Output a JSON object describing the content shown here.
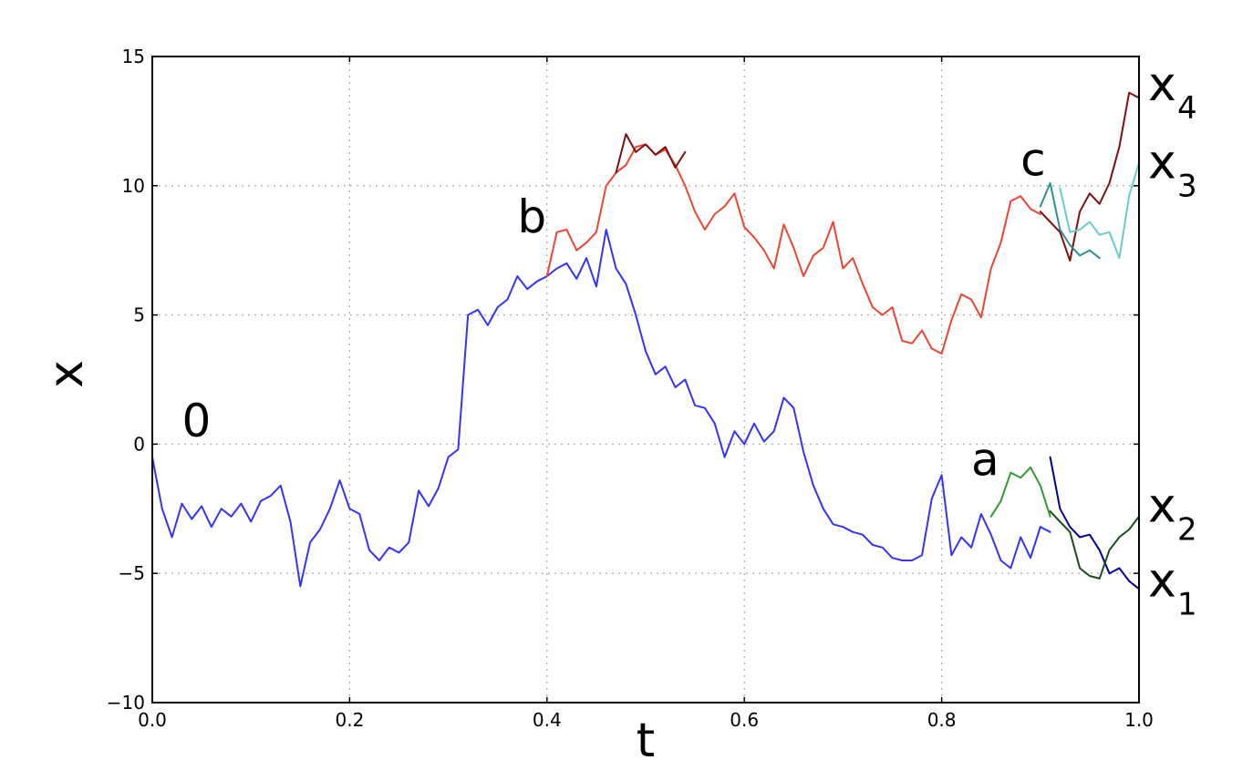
{
  "chart_data": {
    "type": "line",
    "xlabel": "t",
    "ylabel": "x",
    "xlim": [
      0.0,
      1.0
    ],
    "ylim": [
      -10,
      15
    ],
    "xticks": [
      0.0,
      0.2,
      0.4,
      0.6,
      0.8,
      1.0
    ],
    "xtick_labels": [
      "0.0",
      "0.2",
      "0.4",
      "0.6",
      "0.8",
      "1.0"
    ],
    "yticks": [
      -10,
      -5,
      0,
      5,
      10,
      15
    ],
    "ytick_labels": [
      "−10",
      "−5",
      "0",
      "5",
      "10",
      "15"
    ],
    "grid": true,
    "series": [
      {
        "name": "",
        "color": "#3333ff",
        "x": [
          0.0,
          0.01,
          0.02,
          0.03,
          0.04,
          0.05,
          0.06,
          0.07,
          0.08,
          0.09,
          0.1,
          0.11,
          0.12,
          0.13,
          0.14,
          0.15,
          0.16,
          0.17,
          0.18,
          0.19,
          0.2,
          0.21,
          0.22,
          0.23,
          0.24,
          0.25,
          0.26,
          0.27,
          0.28,
          0.29,
          0.3,
          0.31,
          0.32,
          0.33,
          0.34,
          0.35,
          0.36,
          0.37,
          0.38,
          0.39,
          0.4,
          0.41,
          0.42,
          0.43,
          0.44,
          0.45,
          0.46,
          0.47,
          0.48,
          0.49,
          0.5,
          0.51,
          0.52,
          0.53,
          0.54,
          0.55,
          0.56,
          0.57,
          0.58,
          0.59,
          0.6,
          0.61,
          0.62,
          0.63,
          0.64,
          0.65,
          0.66,
          0.67,
          0.68,
          0.69,
          0.7,
          0.71,
          0.72,
          0.73,
          0.74,
          0.75,
          0.76,
          0.77,
          0.78,
          0.79,
          0.8
        ],
        "y": [
          -0.5,
          -2.5,
          -3.6,
          -2.3,
          -2.9,
          -2.4,
          -3.2,
          -2.5,
          -2.8,
          -2.3,
          -3.0,
          -2.2,
          -2.0,
          -1.6,
          -3.0,
          -5.5,
          -3.8,
          -3.3,
          -2.5,
          -1.4,
          -2.5,
          -2.7,
          -4.1,
          -4.5,
          -4.0,
          -4.2,
          -3.8,
          -1.8,
          -2.4,
          -1.7,
          -0.5,
          -0.2,
          5.0,
          5.2,
          4.6,
          5.3,
          5.6,
          6.5,
          6.0,
          6.3,
          6.5,
          6.8,
          7.0,
          6.4,
          7.2,
          6.1,
          8.3,
          6.8,
          6.2,
          5.0,
          3.6,
          2.7,
          3.0,
          2.2,
          2.5,
          1.5,
          1.4,
          0.8,
          -0.5,
          0.5,
          0.0,
          0.8,
          0.1,
          0.5,
          1.8,
          1.4,
          -0.3,
          -1.6,
          -2.5,
          -3.1,
          -3.2,
          -3.4,
          -3.5,
          -3.9,
          -4.0,
          -4.4,
          -4.5,
          -4.5,
          -4.3,
          -2.1,
          -1.2
        ]
      },
      {
        "name": "",
        "color": "#3333ff",
        "x": [
          0.8,
          0.81,
          0.82,
          0.83,
          0.84,
          0.85,
          0.86,
          0.87,
          0.88,
          0.89,
          0.9,
          0.91
        ],
        "y": [
          -1.2,
          -4.3,
          -3.6,
          -4.0,
          -2.7,
          -3.5,
          -4.5,
          -4.8,
          -3.6,
          -4.4,
          -3.2,
          -3.4
        ]
      },
      {
        "name": "",
        "color": "#339933",
        "x": [
          0.85,
          0.86,
          0.87,
          0.88,
          0.89,
          0.9,
          0.91
        ],
        "y": [
          -2.8,
          -2.2,
          -1.1,
          -1.3,
          -0.9,
          -1.6,
          -2.8
        ]
      },
      {
        "name": "",
        "color": "#000099",
        "x": [
          0.91,
          0.92,
          0.93,
          0.94,
          0.95,
          0.96,
          0.97,
          0.98,
          0.99,
          1.0
        ],
        "y": [
          -0.5,
          -2.5,
          -3.2,
          -3.6,
          -3.5,
          -4.1,
          -5.0,
          -4.8,
          -5.3,
          -5.6
        ]
      },
      {
        "name": "",
        "color": "#1a4d1a",
        "x": [
          0.91,
          0.92,
          0.93,
          0.94,
          0.95,
          0.96,
          0.97,
          0.98,
          0.99,
          1.0
        ],
        "y": [
          -2.6,
          -3.0,
          -3.4,
          -4.8,
          -5.1,
          -5.2,
          -4.1,
          -3.6,
          -3.3,
          -2.8
        ]
      },
      {
        "name": "",
        "color": "#ee4433",
        "x": [
          0.4,
          0.41,
          0.42,
          0.43,
          0.44,
          0.45,
          0.46,
          0.47,
          0.48,
          0.49,
          0.5,
          0.51,
          0.52,
          0.53,
          0.54,
          0.55,
          0.56,
          0.57,
          0.58,
          0.59,
          0.6,
          0.61,
          0.62,
          0.63,
          0.64,
          0.65,
          0.66,
          0.67,
          0.68,
          0.69,
          0.7,
          0.71,
          0.72,
          0.73,
          0.74,
          0.75,
          0.76,
          0.77,
          0.78,
          0.79,
          0.8,
          0.81,
          0.82,
          0.83,
          0.84,
          0.85,
          0.86,
          0.87,
          0.88,
          0.89,
          0.9
        ],
        "y": [
          6.5,
          8.2,
          8.3,
          7.5,
          7.8,
          8.2,
          10.0,
          10.5,
          10.8,
          11.5,
          11.6,
          11.2,
          11.4,
          10.8,
          10.0,
          9.0,
          8.3,
          8.9,
          9.2,
          9.7,
          8.4,
          8.0,
          7.5,
          6.8,
          8.5,
          7.6,
          6.5,
          7.3,
          7.6,
          8.6,
          6.8,
          7.2,
          6.2,
          5.3,
          5.0,
          5.3,
          4.0,
          3.9,
          4.4,
          3.7,
          3.5,
          4.8,
          5.8,
          5.6,
          4.9,
          6.8,
          7.8,
          9.4,
          9.6,
          9.1,
          8.9
        ]
      },
      {
        "name": "",
        "color": "#7f0f0f",
        "x": [
          0.47,
          0.48,
          0.49,
          0.5,
          0.51,
          0.52,
          0.53,
          0.54
        ],
        "y": [
          10.5,
          12.0,
          11.3,
          11.6,
          11.2,
          11.5,
          10.7,
          11.3
        ]
      },
      {
        "name": "",
        "color": "#7f0f0f",
        "x": [
          0.9,
          0.91,
          0.92,
          0.93,
          0.94,
          0.95,
          0.96,
          0.97,
          0.98,
          0.99,
          1.0
        ],
        "y": [
          9.0,
          8.6,
          8.2,
          7.1,
          9.0,
          9.7,
          9.3,
          10.1,
          11.5,
          13.6,
          13.4
        ]
      },
      {
        "name": "",
        "color": "#2f8f8f",
        "x": [
          0.9,
          0.91,
          0.92,
          0.93,
          0.94,
          0.95,
          0.96
        ],
        "y": [
          9.2,
          10.1,
          8.3,
          7.7,
          7.3,
          7.5,
          7.2
        ]
      },
      {
        "name": "",
        "color": "#66cccc",
        "x": [
          0.92,
          0.93,
          0.94,
          0.95,
          0.96,
          0.97,
          0.98,
          0.99,
          1.0
        ],
        "y": [
          9.9,
          8.2,
          8.3,
          8.6,
          8.1,
          8.2,
          7.2,
          9.6,
          10.9
        ]
      }
    ],
    "annotations": [
      {
        "text": "0",
        "x": 0.03,
        "y": 0.3
      },
      {
        "text": "a",
        "x": 0.83,
        "y": -1.2
      },
      {
        "text": "b",
        "x": 0.37,
        "y": 8.2
      },
      {
        "text": "c",
        "x": 0.88,
        "y": 10.4
      }
    ],
    "end_labels": [
      {
        "base": "x",
        "sub": "4",
        "x": 1.0,
        "y": 13.3
      },
      {
        "base": "x",
        "sub": "3",
        "x": 1.0,
        "y": 10.3
      },
      {
        "base": "x",
        "sub": "2",
        "x": 1.0,
        "y": -3.0
      },
      {
        "base": "x",
        "sub": "1",
        "x": 1.0,
        "y": -5.9
      }
    ]
  }
}
